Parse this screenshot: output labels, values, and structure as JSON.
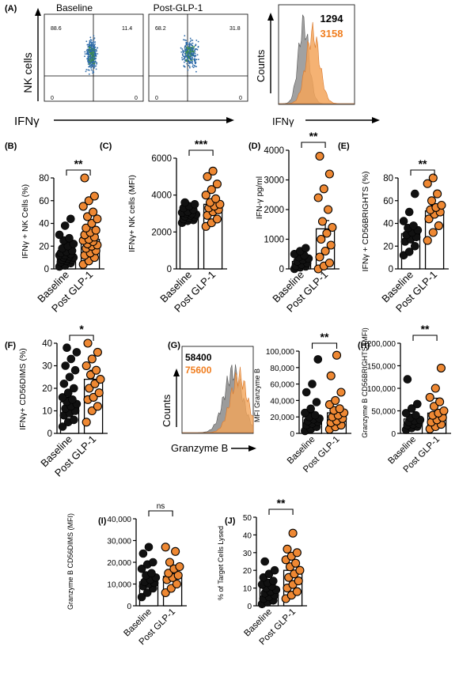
{
  "colors": {
    "baseline": "#111111",
    "post": "#ee8833",
    "post_text": "#f07d1e",
    "dots": "#2c6aa8",
    "gray_hist": "#8a8a8a",
    "orange_hist": "#f3a55a"
  },
  "panelA": {
    "letter": "(A)",
    "plot1_title": "Baseline",
    "plot2_title": "Post-GLP-1",
    "ylabel": "NK cells",
    "xlabel": "IFNγ",
    "q1": {
      "ul": "88.6",
      "ur": "11.4",
      "ll": "0",
      "lr": "0"
    },
    "q2": {
      "ul": "68.2",
      "ur": "31.8",
      "ll": "0",
      "lr": "0"
    },
    "hist_ylabel": "Counts",
    "hist_xlabel": "IFNγ",
    "mfi_base": "1294",
    "mfi_post": "3158"
  },
  "panelG_hist": {
    "letter": "(G)",
    "mfi_base": "58400",
    "mfi_post": "75600",
    "ylabel": "Counts",
    "xlabel": "Granzyme B"
  },
  "chart_data": [
    {
      "id": "B",
      "type": "bar",
      "letter": "(B)",
      "ylabel": "IFNγ + NK Cells (%)",
      "yticks": [
        "0",
        "20",
        "40",
        "60",
        "80"
      ],
      "ylim": [
        0,
        80
      ],
      "categories": [
        "Baseline",
        "Post GLP-1"
      ],
      "values": [
        13,
        26
      ],
      "error": [
        2,
        4
      ],
      "sig": "**",
      "points": [
        [
          2,
          3,
          5,
          6,
          7,
          8,
          8,
          9,
          10,
          10,
          11,
          12,
          12,
          13,
          14,
          15,
          16,
          18,
          20,
          22,
          25,
          27,
          30,
          38,
          44
        ],
        [
          4,
          7,
          10,
          12,
          14,
          16,
          18,
          20,
          21,
          22,
          24,
          25,
          26,
          28,
          30,
          32,
          34,
          36,
          40,
          44,
          46,
          50,
          55,
          60,
          64,
          80
        ]
      ]
    },
    {
      "id": "C",
      "type": "bar",
      "letter": "(C)",
      "ylabel": "IFNγ+ NK cells (MFI)",
      "yticks": [
        "0",
        "2000",
        "4000",
        "6000"
      ],
      "ylim": [
        0,
        6000
      ],
      "categories": [
        "Baseline",
        "Post GLP-1"
      ],
      "values": [
        2900,
        3500
      ],
      "error": [
        80,
        220
      ],
      "sig": "***",
      "points": [
        [
          2500,
          2600,
          2650,
          2700,
          2750,
          2800,
          2850,
          2900,
          2950,
          3000,
          3000,
          3050,
          3100,
          3200,
          3300,
          3400,
          3500,
          3600
        ],
        [
          2300,
          2500,
          2700,
          2900,
          3100,
          3200,
          3300,
          3400,
          3500,
          3600,
          3800,
          4000,
          4300,
          4600,
          5000,
          5300
        ]
      ]
    },
    {
      "id": "D",
      "type": "bar",
      "letter": "(D)",
      "ylabel": "IFN-γ pg/ml",
      "yticks": [
        "0",
        "1000",
        "2000",
        "3000",
        "4000"
      ],
      "ylim": [
        0,
        4000
      ],
      "categories": [
        "Baseline",
        "Post GLP-1"
      ],
      "values": [
        250,
        1350
      ],
      "error": [
        70,
        280
      ],
      "sig": "**",
      "points": [
        [
          0,
          50,
          80,
          100,
          150,
          200,
          250,
          300,
          350,
          400,
          450,
          500,
          600,
          700
        ],
        [
          0,
          100,
          200,
          400,
          600,
          800,
          1000,
          1200,
          1400,
          1600,
          2000,
          2400,
          2700,
          3200,
          3800
        ]
      ]
    },
    {
      "id": "E",
      "type": "bar",
      "letter": "(E)",
      "ylabel": "IFNγ + CD56BRIGHTS (%)",
      "yticks": [
        "0",
        "20",
        "40",
        "60",
        "80"
      ],
      "ylim": [
        0,
        80
      ],
      "categories": [
        "Baseline",
        "Post GLP-1"
      ],
      "values": [
        31,
        51
      ],
      "error": [
        4,
        5
      ],
      "sig": "**",
      "points": [
        [
          12,
          15,
          20,
          24,
          26,
          28,
          30,
          32,
          34,
          36,
          38,
          42,
          50,
          66
        ],
        [
          25,
          32,
          38,
          44,
          48,
          50,
          52,
          54,
          56,
          60,
          66,
          75,
          80
        ]
      ]
    },
    {
      "id": "F",
      "type": "bar",
      "letter": "(F)",
      "ylabel": "IFNγ+ CD56DIMS (%)",
      "yticks": [
        "0",
        "10",
        "20",
        "30",
        "40"
      ],
      "ylim": [
        0,
        40
      ],
      "categories": [
        "Baseline",
        "Post GLP-1"
      ],
      "values": [
        14,
        24
      ],
      "error": [
        2,
        4
      ],
      "sig": "*",
      "points": [
        [
          3,
          5,
          6,
          8,
          9,
          10,
          11,
          12,
          13,
          14,
          15,
          16,
          18,
          20,
          22,
          25,
          28,
          30,
          33,
          36,
          38
        ],
        [
          5,
          10,
          12,
          15,
          16,
          18,
          20,
          22,
          24,
          26,
          28,
          30,
          33,
          36,
          40
        ]
      ]
    },
    {
      "id": "G",
      "type": "bar",
      "letter": "",
      "ylabel": "MFI Granzyme B",
      "yticks": [
        "0",
        "20,000",
        "40,000",
        "60,000",
        "80,000",
        "100,000"
      ],
      "ylim": [
        0,
        100000
      ],
      "categories": [
        "Baseline",
        "Post GLP-1"
      ],
      "values": [
        20000,
        25000
      ],
      "error": [
        5000,
        5000
      ],
      "sig": "**",
      "points": [
        [
          3000,
          5000,
          8000,
          10000,
          12000,
          14000,
          15000,
          17000,
          18000,
          20000,
          22000,
          25000,
          30000,
          38000,
          50000,
          60000,
          90000
        ],
        [
          5000,
          8000,
          10000,
          13000,
          15000,
          18000,
          20000,
          22000,
          25000,
          28000,
          30000,
          35000,
          40000,
          50000,
          70000,
          95000
        ]
      ]
    },
    {
      "id": "H",
      "type": "bar",
      "letter": "(H)",
      "ylabel": "Granzyme B CD56BRIGHTS (MFI)",
      "yticks": [
        "0",
        "50,000",
        "100,000",
        "150,000",
        "200,000"
      ],
      "ylim": [
        0,
        200000
      ],
      "categories": [
        "Baseline",
        "Post GLP-1"
      ],
      "values": [
        32000,
        45000
      ],
      "error": [
        7000,
        33000
      ],
      "sig": "**",
      "points": [
        [
          8000,
          12000,
          15000,
          18000,
          20000,
          22000,
          25000,
          28000,
          30000,
          35000,
          40000,
          45000,
          55000,
          65000,
          120000
        ],
        [
          10000,
          15000,
          20000,
          25000,
          30000,
          35000,
          40000,
          45000,
          50000,
          60000,
          70000,
          80000,
          100000,
          145000
        ]
      ]
    },
    {
      "id": "I",
      "type": "bar",
      "letter": "(I)",
      "ylabel": "Granzyme B CD56DIMS (MFI)",
      "yticks": [
        "0",
        "10,000",
        "20,000",
        "30,000",
        "40,000"
      ],
      "ylim": [
        0,
        40000
      ],
      "categories": [
        "Baseline",
        "Post GLP-1"
      ],
      "values": [
        11000,
        13500
      ],
      "error": [
        1200,
        1800
      ],
      "sig": "ns",
      "points": [
        [
          4000,
          6000,
          8000,
          9000,
          10000,
          10500,
          11000,
          12000,
          13000,
          14000,
          15000,
          17000,
          19000,
          20000,
          24000,
          27000
        ],
        [
          6000,
          8000,
          10000,
          12000,
          13000,
          14000,
          15000,
          17000,
          18000,
          20000,
          25000,
          27000
        ]
      ]
    },
    {
      "id": "J",
      "type": "bar",
      "letter": "(J)",
      "ylabel": "% of Target Cells Lysed",
      "yticks": [
        "0",
        "10",
        "20",
        "30",
        "40",
        "50"
      ],
      "ylim": [
        0,
        50
      ],
      "categories": [
        "Baseline",
        "Post GLP-1"
      ],
      "values": [
        10,
        20
      ],
      "error": [
        3,
        9
      ],
      "sig": "**",
      "points": [
        [
          1,
          2,
          3,
          4,
          5,
          6,
          7,
          8,
          9,
          10,
          11,
          12,
          13,
          14,
          16,
          18,
          20,
          25
        ],
        [
          4,
          6,
          8,
          10,
          12,
          14,
          16,
          18,
          20,
          22,
          24,
          26,
          28,
          30,
          32,
          41
        ]
      ]
    }
  ]
}
